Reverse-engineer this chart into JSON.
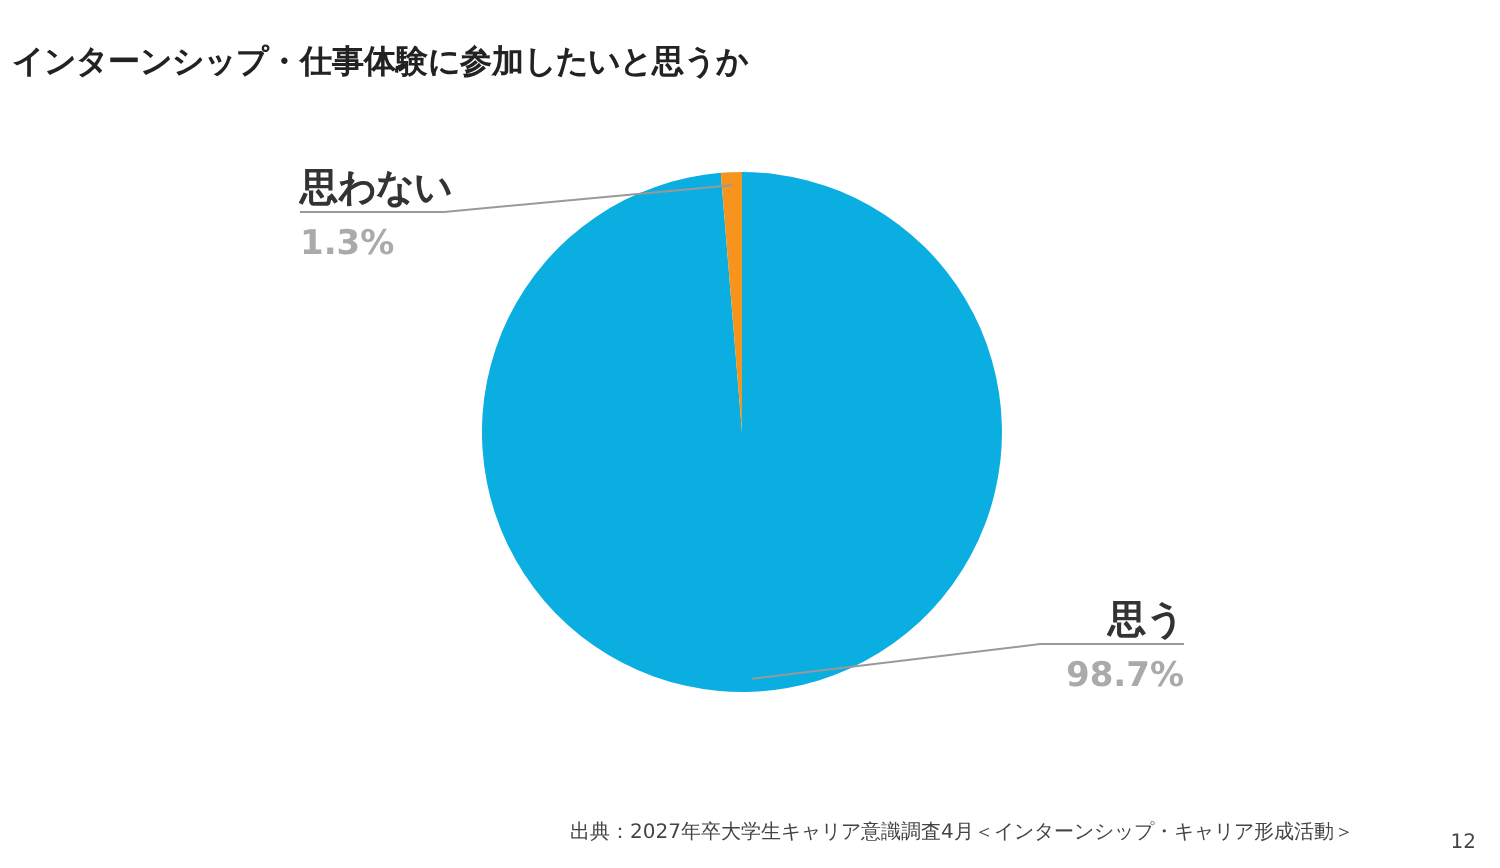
{
  "chart_data": {
    "type": "pie",
    "title": "インターンシップ・仕事体験に参加したいと思うか",
    "categories": [
      "思う",
      "思わない"
    ],
    "values": [
      98.7,
      1.3
    ],
    "colors": [
      "#0aaee0",
      "#f7941d"
    ],
    "value_labels": [
      "98.7%",
      "1.3%"
    ],
    "annotations": [
      "出典：2027年卒大学生キャリア意識調査4月＜インターンシップ・キャリア形成活動＞",
      "12"
    ]
  }
}
